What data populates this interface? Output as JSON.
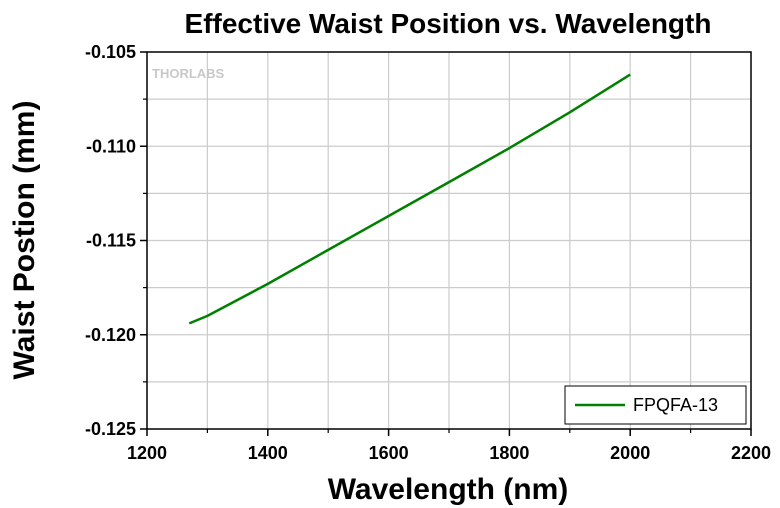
{
  "chart_data": {
    "type": "line",
    "title": "Effective Waist Position vs. Wavelength",
    "xlabel": "Wavelength (nm)",
    "ylabel": "Waist Postion (mm)",
    "xlim": [
      1200,
      2200
    ],
    "ylim": [
      -0.125,
      -0.105
    ],
    "x_ticks": [
      1200,
      1400,
      1600,
      1800,
      2000,
      2200
    ],
    "x_tick_labels": [
      "1200",
      "1400",
      "1600",
      "1800",
      "2000",
      "2200"
    ],
    "y_ticks": [
      -0.125,
      -0.12,
      -0.115,
      -0.11,
      -0.105
    ],
    "y_tick_labels": [
      "-0.125",
      "-0.120",
      "-0.115",
      "-0.110",
      "-0.105"
    ],
    "grid": true,
    "legend_position": "bottom-right",
    "watermark": "THORLABS",
    "series": [
      {
        "name": "FPQFA-13",
        "color": "#008000",
        "x": [
          1270,
          1300,
          1400,
          1500,
          1600,
          1700,
          1800,
          1900,
          2000
        ],
        "y": [
          -0.1194,
          -0.119,
          -0.1173,
          -0.1155,
          -0.1137,
          -0.1119,
          -0.1101,
          -0.1082,
          -0.1062
        ]
      }
    ]
  }
}
